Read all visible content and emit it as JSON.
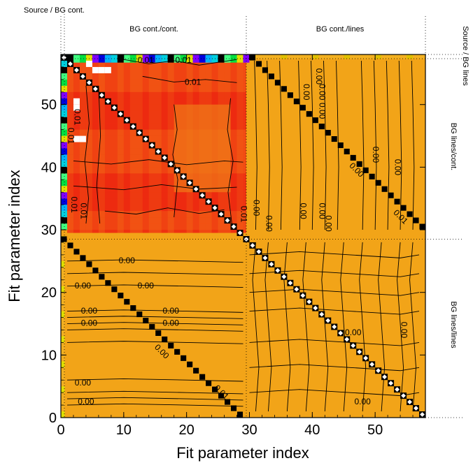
{
  "chart_data": {
    "type": "heatmap",
    "title": "",
    "xlabel": "Fit parameter index",
    "ylabel": "Fit parameter index",
    "xlim": [
      0,
      58
    ],
    "ylim": [
      0,
      58
    ],
    "xticks": [
      0,
      10,
      20,
      30,
      40,
      50
    ],
    "yticks": [
      0,
      10,
      20,
      30,
      40,
      50
    ],
    "boundaries": [
      1,
      29.5
    ],
    "region_labels": {
      "source_bg_cont": "Source / BG cont.",
      "bg_cont_cont": "BG cont./cont.",
      "bg_cont_lines": "BG cont./lines",
      "source_bg_lines": "Source / BG lines",
      "bg_lines_cont": "BG lines/cont.",
      "bg_lines_lines": "BG lines/lines"
    },
    "contour_labels": [
      {
        "text": "0.01",
        "x": 13.5,
        "y": 57.0
      },
      {
        "text": "0.01",
        "x": 19.5,
        "y": 57.0
      },
      {
        "text": "0.01",
        "x": 21.0,
        "y": 53.5
      },
      {
        "text": "0.01",
        "x": 2.5,
        "y": 48.0,
        "rotate": 90
      },
      {
        "text": "0.01",
        "x": 1.5,
        "y": 45.0,
        "rotate": 90
      },
      {
        "text": "0.01",
        "x": 2.0,
        "y": 34.0,
        "rotate": 90
      },
      {
        "text": "0.01",
        "x": 3.5,
        "y": 33.0,
        "rotate": 90
      },
      {
        "text": "0.01",
        "x": 29.0,
        "y": 32.5,
        "rotate": 90
      },
      {
        "text": "0.00",
        "x": 39.0,
        "y": 52.0,
        "rotate": 90
      },
      {
        "text": "0.00",
        "x": 41.5,
        "y": 52.0,
        "rotate": 90
      },
      {
        "text": "0.00",
        "x": 41.0,
        "y": 54.5,
        "rotate": 90
      },
      {
        "text": "0.00",
        "x": 41.5,
        "y": 49.0,
        "rotate": 90
      },
      {
        "text": "0.00",
        "x": 50.0,
        "y": 42.0,
        "rotate": 90
      },
      {
        "text": "0.00",
        "x": 53.5,
        "y": 40.0,
        "rotate": 90
      },
      {
        "text": "0.00",
        "x": 31.0,
        "y": 33.5,
        "rotate": 90
      },
      {
        "text": "0.00",
        "x": 33.0,
        "y": 31.0,
        "rotate": 90
      },
      {
        "text": "0.00",
        "x": 38.5,
        "y": 33.0,
        "rotate": 90
      },
      {
        "text": "0.00",
        "x": 41.5,
        "y": 33.0,
        "rotate": 90
      },
      {
        "text": "0.00",
        "x": 42.5,
        "y": 31.0,
        "rotate": 90
      },
      {
        "text": "0.00",
        "x": 10.5,
        "y": 25.0
      },
      {
        "text": "0.00",
        "x": 3.5,
        "y": 21.0
      },
      {
        "text": "0.00",
        "x": 13.5,
        "y": 21.0
      },
      {
        "text": "0.00",
        "x": 4.5,
        "y": 17.0
      },
      {
        "text": "0.00",
        "x": 17.5,
        "y": 17.0
      },
      {
        "text": "0.00",
        "x": 4.5,
        "y": 15.0
      },
      {
        "text": "0.00",
        "x": 17.5,
        "y": 15.0
      },
      {
        "text": "0.00",
        "x": 46.5,
        "y": 13.5
      },
      {
        "text": "0.00",
        "x": 54.5,
        "y": 14.0,
        "rotate": 90
      },
      {
        "text": "0.00",
        "x": 3.5,
        "y": 5.5
      },
      {
        "text": "0.00",
        "x": 4.0,
        "y": 2.5
      },
      {
        "text": "0.00",
        "x": 48.0,
        "y": 2.5
      },
      {
        "text": "0.00",
        "x": 16.0,
        "y": 10.5,
        "rotate": 45
      },
      {
        "text": "0.01",
        "x": 25.5,
        "y": 4.0,
        "rotate": 45
      },
      {
        "text": "0.00",
        "x": 47.0,
        "y": 39.5,
        "rotate": 45
      },
      {
        "text": "0.01",
        "x": 54.0,
        "y": 32.0,
        "rotate": 45
      }
    ],
    "colors": {
      "background": "#f2a418",
      "strong": "#ec1a10",
      "medium": "#f04012",
      "diag_dark": "#000000",
      "diag_light": "#ffffff",
      "border_cyan": "#00d0e0",
      "border_green": "#00e040",
      "border_blue": "#0000e0",
      "border_yellow": "#e0e000"
    }
  }
}
